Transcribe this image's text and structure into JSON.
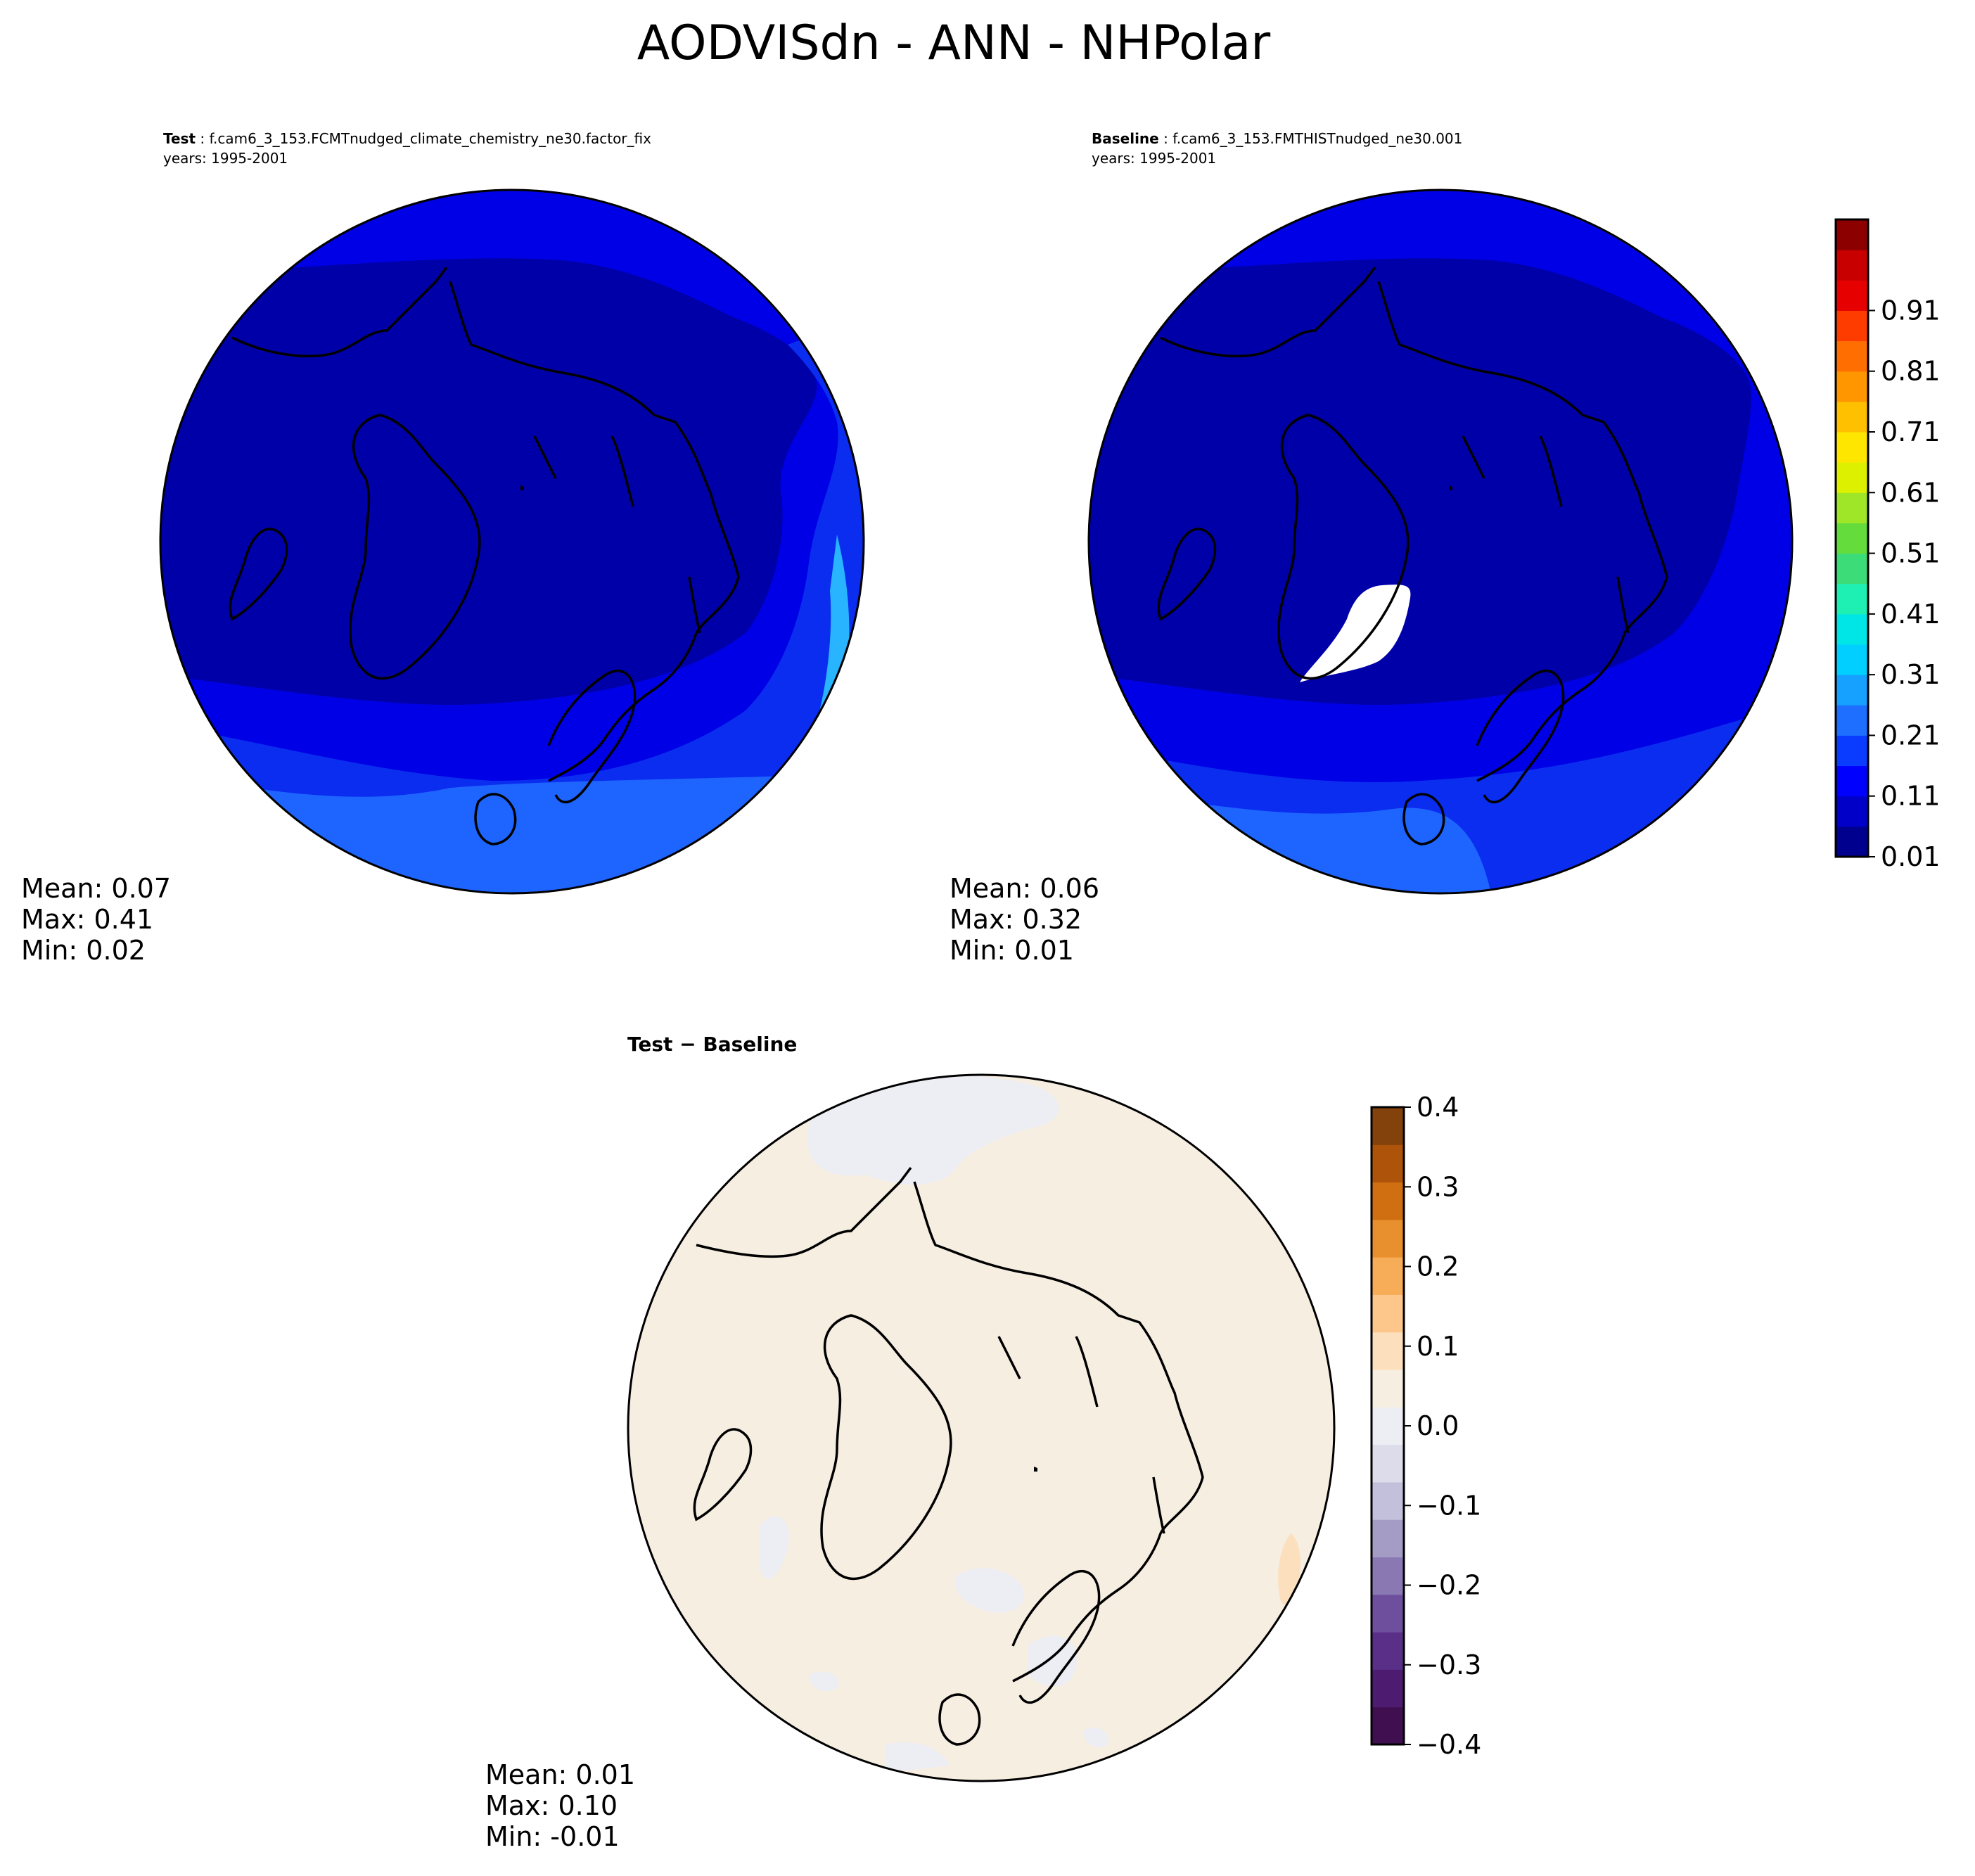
{
  "figure_title": "AODVISdn - ANN - NHPolar",
  "colors": {
    "map_outline": "#000000",
    "coast": "#000000",
    "missing_data": "#ffffff"
  },
  "panels": [
    {
      "id": "test",
      "header_bold": "Test",
      "header_rest": ": f.cam6_3_153.FCMTnudged_climate_chemistry_ne30.factor_fix",
      "header_line2": "years: 1995-2001",
      "stats": {
        "mean": "Mean:  0.07",
        "max": "Max:  0.41",
        "min": "Min:  0.02"
      },
      "field": {
        "background": "#0000a8",
        "levels": [
          {
            "value_range": [
              0.11,
              0.16
            ],
            "color": "#0000e6"
          },
          {
            "value_range": [
              0.16,
              0.21
            ],
            "color": "#0a2df0"
          },
          {
            "value_range": [
              0.21,
              0.26
            ],
            "color": "#1e64ff"
          },
          {
            "value_range": [
              0.26,
              0.41
            ],
            "color": "#28b4ff"
          }
        ]
      }
    },
    {
      "id": "baseline",
      "header_bold": "Baseline",
      "header_rest": ": f.cam6_3_153.FMTHISTnudged_ne30.001",
      "header_line2": "years: 1995-2001",
      "stats": {
        "mean": "Mean:  0.06",
        "max": "Max:  0.32",
        "min": "Min:  0.01"
      },
      "field": {
        "background": "#0000a8",
        "levels": [
          {
            "value_range": [
              0.11,
              0.16
            ],
            "color": "#0000e6"
          },
          {
            "value_range": [
              0.16,
              0.21
            ],
            "color": "#0a2df0"
          },
          {
            "value_range": [
              0.21,
              0.32
            ],
            "color": "#1e64ff"
          }
        ],
        "missing_region": "Greenland interior"
      }
    },
    {
      "id": "diff",
      "header_bold": "Test − Baseline",
      "stats": {
        "mean": "Mean:  0.01",
        "max": "Max:  0.10",
        "min": "Min: -0.01"
      },
      "field": {
        "background": "#f7eee2",
        "levels": [
          {
            "value_range": [
              -0.05,
              0.0
            ],
            "color": "#ededf4"
          },
          {
            "value_range": [
              0.05,
              0.1
            ],
            "color": "#fce0bd"
          }
        ]
      }
    }
  ],
  "colorbar_main": {
    "ticks": [
      "0.01",
      "0.11",
      "0.21",
      "0.31",
      "0.41",
      "0.51",
      "0.61",
      "0.71",
      "0.81",
      "0.91"
    ],
    "colors": [
      "#00008f",
      "#0000c8",
      "#0000ff",
      "#0a3cff",
      "#1e6eff",
      "#16a0ff",
      "#00cfff",
      "#00e6e6",
      "#1ef0b4",
      "#3cdc78",
      "#64dc3c",
      "#a0e628",
      "#dcf000",
      "#ffe600",
      "#ffc000",
      "#ff9600",
      "#ff6e00",
      "#ff3c00",
      "#e60000",
      "#c80000",
      "#8c0000"
    ]
  },
  "colorbar_diff": {
    "ticks": [
      "−0.4",
      "−0.3",
      "−0.2",
      "−0.1",
      "0.0",
      "0.1",
      "0.2",
      "0.3",
      "0.4"
    ],
    "colors": [
      "#3f0f4f",
      "#4d1c71",
      "#5a2f88",
      "#6e4f9e",
      "#8a78b3",
      "#a59cc6",
      "#c3c0dc",
      "#dcdcea",
      "#ededf4",
      "#f7eee2",
      "#fce0bd",
      "#fdc68a",
      "#f7ad57",
      "#e8902d",
      "#cf6f12",
      "#ae540a",
      "#83420b"
    ]
  },
  "chart_data": [
    {
      "type": "heatmap",
      "title": "Test",
      "subtitle": "f.cam6_3_153.FCMTnudged_climate_chemistry_ne30.factor_fix",
      "period": "years: 1995-2001",
      "projection": "north polar stereographic",
      "mean": 0.07,
      "max": 0.41,
      "min": 0.02,
      "levels_start": 0.01,
      "levels_step": 0.05,
      "levels_end": 0.96
    },
    {
      "type": "heatmap",
      "title": "Baseline",
      "subtitle": "f.cam6_3_153.FMTHISTnudged_ne30.001",
      "period": "years: 1995-2001",
      "projection": "north polar stereographic",
      "mean": 0.06,
      "max": 0.32,
      "min": 0.01,
      "levels_start": 0.01,
      "levels_step": 0.05,
      "levels_end": 0.96
    },
    {
      "type": "heatmap",
      "title": "Test − Baseline",
      "projection": "north polar stereographic",
      "mean": 0.01,
      "max": 0.1,
      "min": -0.01,
      "levels_start": -0.4,
      "levels_step": 0.05,
      "levels_end": 0.4
    }
  ]
}
